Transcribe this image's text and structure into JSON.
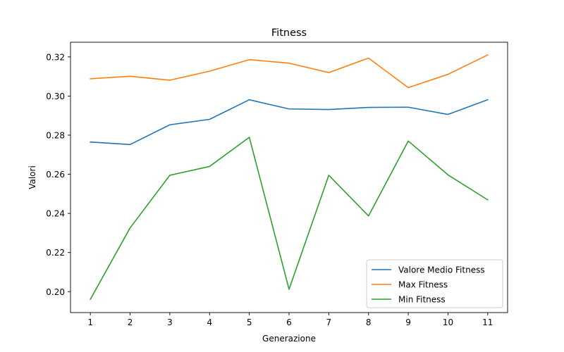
{
  "chart_data": {
    "type": "line",
    "title": "Fitness",
    "xlabel": "Generazione",
    "ylabel": "Valori",
    "x": [
      1,
      2,
      3,
      4,
      5,
      6,
      7,
      8,
      9,
      10,
      11
    ],
    "xlim": [
      0.5,
      11.5
    ],
    "ylim": [
      0.1893,
      0.3275
    ],
    "yticks": [
      0.2,
      0.22,
      0.24,
      0.26,
      0.28,
      0.3,
      0.32
    ],
    "ytick_labels": [
      "0.20",
      "0.22",
      "0.24",
      "0.26",
      "0.28",
      "0.30",
      "0.32"
    ],
    "xtick_labels": [
      "1",
      "2",
      "3",
      "4",
      "5",
      "6",
      "7",
      "8",
      "9",
      "10",
      "11"
    ],
    "grid": false,
    "legend_position": "lower-right",
    "series": [
      {
        "name": "Valore Medio Fitness",
        "color": "#1f77b4",
        "values": [
          0.2765,
          0.2752,
          0.2853,
          0.2881,
          0.2981,
          0.2934,
          0.2931,
          0.2942,
          0.2943,
          0.2906,
          0.2981
        ]
      },
      {
        "name": "Max Fitness",
        "color": "#ff7f0e",
        "values": [
          0.3088,
          0.3101,
          0.3081,
          0.3127,
          0.3186,
          0.3168,
          0.312,
          0.3194,
          0.3043,
          0.3111,
          0.321
        ]
      },
      {
        "name": "Min Fitness",
        "color": "#2ca02c",
        "values": [
          0.1961,
          0.2326,
          0.2595,
          0.264,
          0.2789,
          0.2012,
          0.2595,
          0.2387,
          0.277,
          0.2597,
          0.2469
        ]
      }
    ]
  }
}
